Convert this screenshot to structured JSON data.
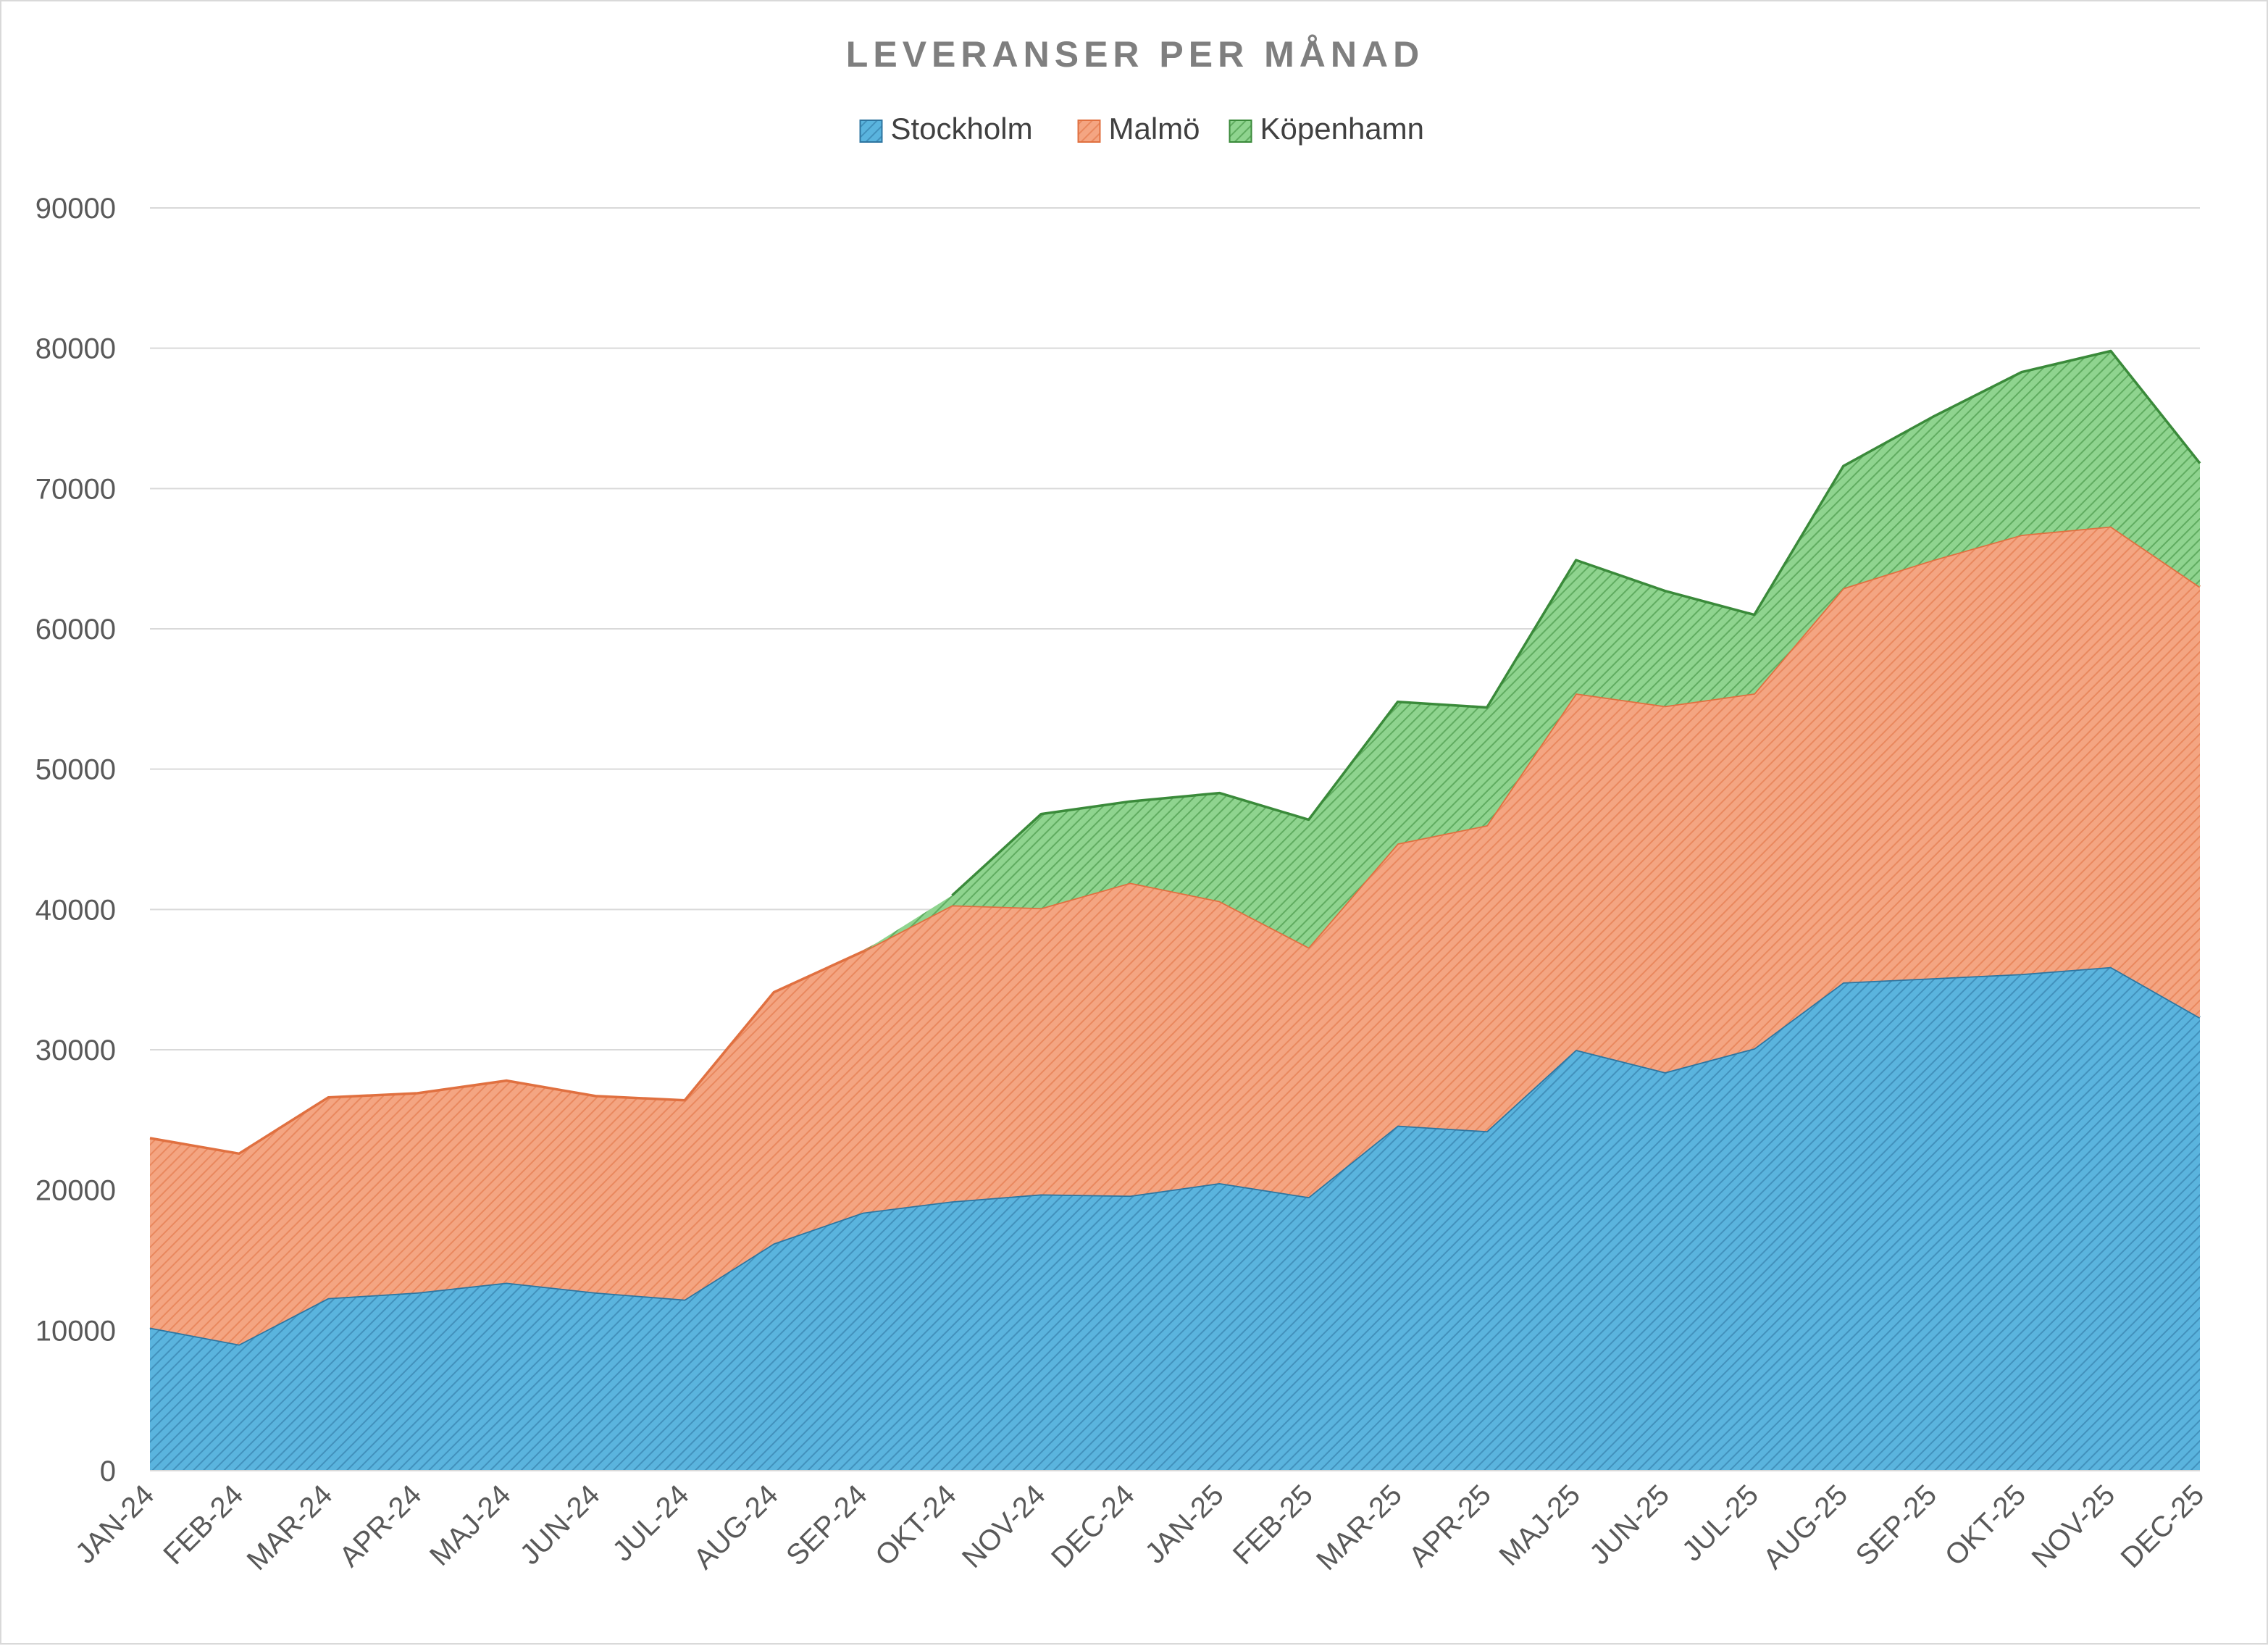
{
  "chart_data": {
    "type": "area",
    "stacked": true,
    "title": "LEVERANSER PER MÅNAD",
    "categories": [
      "JAN-24",
      "FEB-24",
      "MAR-24",
      "APR-24",
      "MAJ-24",
      "JUN-24",
      "JUL-24",
      "AUG-24",
      "SEP-24",
      "OKT-24",
      "NOV-24",
      "DEC-24",
      "JAN-25",
      "FEB-25",
      "MAR-25",
      "APR-25",
      "MAJ-25",
      "JUN-25",
      "JUL-25",
      "AUG-25",
      "SEP-25",
      "OKT-25",
      "NOV-25",
      "DEC-25"
    ],
    "series": [
      {
        "name": "Stockholm",
        "color": "#5ab4de",
        "stroke": "#2e75a0",
        "values": [
          10200,
          9000,
          12300,
          12700,
          13400,
          12700,
          12200,
          16200,
          18400,
          19200,
          19700,
          19600,
          20500,
          19500,
          24600,
          24200,
          30000,
          28400,
          30100,
          34800,
          35100,
          35400,
          35900,
          32300
        ]
      },
      {
        "name": "Malmö",
        "color": "#f4a582",
        "stroke": "#e07040",
        "values": [
          13500,
          13600,
          14300,
          14200,
          14400,
          14000,
          14200,
          17900,
          18600,
          21100,
          20400,
          22300,
          20100,
          17800,
          20100,
          21800,
          25400,
          26100,
          25300,
          28100,
          29800,
          31300,
          31400,
          30700
        ]
      },
      {
        "name": "Köpenhamn",
        "color": "#8fd48f",
        "stroke": "#3a8a3a",
        "values": [
          0,
          0,
          0,
          0,
          0,
          0,
          0,
          0,
          0,
          700,
          6700,
          5800,
          7700,
          9100,
          10100,
          8400,
          9500,
          8200,
          5600,
          8700,
          10200,
          11600,
          12500,
          8800
        ]
      }
    ],
    "ylim": [
      0,
      90000
    ],
    "yticks": [
      0,
      10000,
      20000,
      30000,
      40000,
      50000,
      60000,
      70000,
      80000,
      90000
    ],
    "grid": true,
    "legend_position": "top"
  }
}
